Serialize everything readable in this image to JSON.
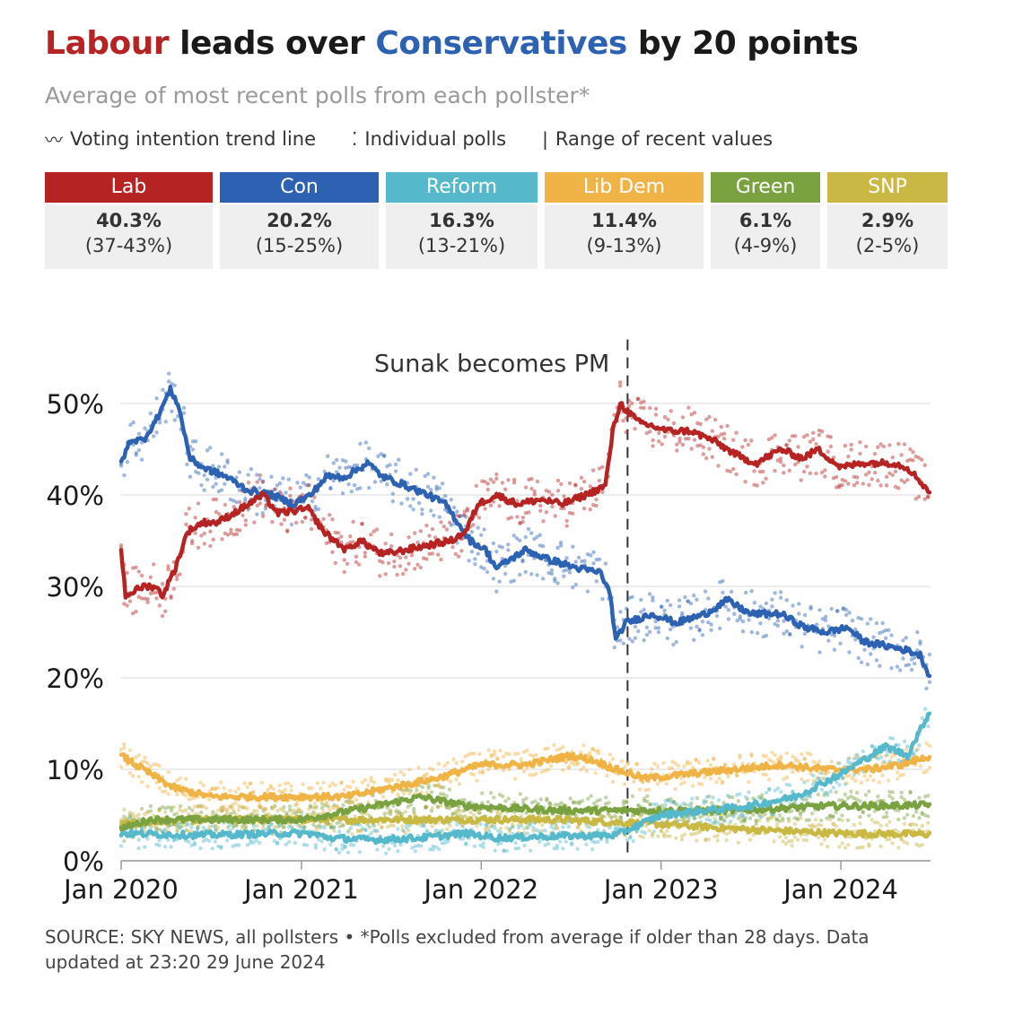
{
  "title": {
    "part1": "Labour",
    "part2": " leads over ",
    "part3": "Conservatives",
    "part4": " by 20 points"
  },
  "subtitle": "Average of most recent polls from each pollster*",
  "legend": {
    "trend_glyph": "〰",
    "trend": "Voting intention trend line",
    "polls_glyph": "⁚",
    "polls": "Individual polls",
    "range_glyph": "|",
    "range": "Range of recent values"
  },
  "parties": [
    {
      "name": "Lab",
      "value": "40.3%",
      "range": "(37-43%)",
      "color": "#b62323"
    },
    {
      "name": "Con",
      "value": "20.2%",
      "range": "(15-25%)",
      "color": "#2d62b3"
    },
    {
      "name": "Reform",
      "value": "16.3%",
      "range": "(13-21%)",
      "color": "#55b9cb"
    },
    {
      "name": "Lib Dem",
      "value": "11.4%",
      "range": "(9-13%)",
      "color": "#efb445"
    },
    {
      "name": "Green",
      "value": "6.1%",
      "range": "(4-9%)",
      "color": "#7aa240"
    },
    {
      "name": "SNP",
      "value": "2.9%",
      "range": "(2-5%)",
      "color": "#c9b844"
    }
  ],
  "source": "SOURCE: SKY NEWS, all pollsters • *Polls excluded from average if older than 28 days. Data updated at 23:20 29 June 2024",
  "chart_data": {
    "type": "line",
    "xlabel": "",
    "ylabel": "",
    "ylim": [
      0,
      55
    ],
    "xlim": [
      "2020-01-01",
      "2024-07-01"
    ],
    "y_ticks": [
      "0%",
      "10%",
      "20%",
      "30%",
      "40%",
      "50%"
    ],
    "y_tick_values": [
      0,
      10,
      20,
      30,
      40,
      50
    ],
    "x_ticks": [
      "Jan 2020",
      "Jan 2021",
      "Jan 2022",
      "Jan 2023",
      "Jan 2024"
    ],
    "x_tick_values": [
      "2020-01-01",
      "2021-01-01",
      "2022-01-01",
      "2023-01-01",
      "2024-01-01"
    ],
    "grid": true,
    "annotation": {
      "label": "Sunak becomes PM",
      "x": "2022-10-25"
    },
    "series": [
      {
        "name": "Lab",
        "color": "#b62323",
        "points": [
          [
            "2020-01-01",
            34
          ],
          [
            "2020-01-10",
            29
          ],
          [
            "2020-02-15",
            30
          ],
          [
            "2020-03-10",
            30
          ],
          [
            "2020-03-25",
            29
          ],
          [
            "2020-04-20",
            32
          ],
          [
            "2020-05-15",
            36
          ],
          [
            "2020-06-15",
            37
          ],
          [
            "2020-07-15",
            37
          ],
          [
            "2020-09-01",
            38.5
          ],
          [
            "2020-10-15",
            40
          ],
          [
            "2020-11-15",
            38
          ],
          [
            "2021-01-15",
            38.5
          ],
          [
            "2021-02-15",
            36
          ],
          [
            "2021-04-01",
            34
          ],
          [
            "2021-05-01",
            35
          ],
          [
            "2021-06-15",
            33.5
          ],
          [
            "2021-08-01",
            34
          ],
          [
            "2021-09-15",
            34.5
          ],
          [
            "2021-11-01",
            35
          ],
          [
            "2021-12-01",
            36
          ],
          [
            "2021-12-25",
            39
          ],
          [
            "2022-02-01",
            40
          ],
          [
            "2022-03-15",
            39
          ],
          [
            "2022-05-01",
            39.5
          ],
          [
            "2022-06-15",
            39
          ],
          [
            "2022-08-01",
            40
          ],
          [
            "2022-09-10",
            41
          ],
          [
            "2022-09-25",
            47
          ],
          [
            "2022-10-10",
            50
          ],
          [
            "2022-11-15",
            48
          ],
          [
            "2023-01-15",
            47
          ],
          [
            "2023-03-01",
            47
          ],
          [
            "2023-04-15",
            46
          ],
          [
            "2023-06-15",
            44
          ],
          [
            "2023-07-15",
            43.5
          ],
          [
            "2023-09-01",
            45
          ],
          [
            "2023-10-15",
            44
          ],
          [
            "2023-11-15",
            45
          ],
          [
            "2024-01-01",
            43
          ],
          [
            "2024-02-15",
            43.5
          ],
          [
            "2024-04-15",
            43.5
          ],
          [
            "2024-05-15",
            43
          ],
          [
            "2024-06-10",
            41.5
          ],
          [
            "2024-06-29",
            40.3
          ]
        ]
      },
      {
        "name": "Con",
        "color": "#2d62b3",
        "points": [
          [
            "2020-01-01",
            43.5
          ],
          [
            "2020-01-20",
            46
          ],
          [
            "2020-02-15",
            46
          ],
          [
            "2020-03-10",
            48
          ],
          [
            "2020-04-10",
            51.5
          ],
          [
            "2020-04-25",
            50
          ],
          [
            "2020-05-20",
            44
          ],
          [
            "2020-06-15",
            43
          ],
          [
            "2020-08-01",
            42
          ],
          [
            "2020-09-15",
            40.5
          ],
          [
            "2020-11-01",
            40
          ],
          [
            "2020-12-15",
            39
          ],
          [
            "2021-01-20",
            40
          ],
          [
            "2021-02-20",
            42
          ],
          [
            "2021-04-01",
            42
          ],
          [
            "2021-05-15",
            43.5
          ],
          [
            "2021-06-15",
            42
          ],
          [
            "2021-08-01",
            41
          ],
          [
            "2021-09-15",
            40
          ],
          [
            "2021-10-20",
            39
          ],
          [
            "2021-12-10",
            35
          ],
          [
            "2022-01-10",
            34
          ],
          [
            "2022-02-01",
            32
          ],
          [
            "2022-04-01",
            34
          ],
          [
            "2022-05-15",
            33
          ],
          [
            "2022-07-15",
            32
          ],
          [
            "2022-09-01",
            31.5
          ],
          [
            "2022-09-20",
            29
          ],
          [
            "2022-10-01",
            24
          ],
          [
            "2022-10-20",
            26
          ],
          [
            "2022-12-15",
            27
          ],
          [
            "2023-02-01",
            26
          ],
          [
            "2023-04-01",
            27
          ],
          [
            "2023-05-15",
            28.5
          ],
          [
            "2023-07-01",
            27
          ],
          [
            "2023-09-01",
            27
          ],
          [
            "2023-10-20",
            25.5
          ],
          [
            "2023-12-01",
            25
          ],
          [
            "2024-01-15",
            25.5
          ],
          [
            "2024-02-15",
            24
          ],
          [
            "2024-04-01",
            23.5
          ],
          [
            "2024-05-15",
            23
          ],
          [
            "2024-06-10",
            22.5
          ],
          [
            "2024-06-29",
            20.2
          ]
        ]
      },
      {
        "name": "Reform",
        "color": "#55b9cb",
        "points": [
          [
            "2020-01-01",
            3
          ],
          [
            "2020-06-01",
            2.8
          ],
          [
            "2020-12-01",
            3
          ],
          [
            "2021-01-15",
            3
          ],
          [
            "2021-03-01",
            2.5
          ],
          [
            "2021-06-01",
            2.3
          ],
          [
            "2021-09-01",
            2.5
          ],
          [
            "2021-12-01",
            3
          ],
          [
            "2022-02-01",
            2.5
          ],
          [
            "2022-06-01",
            2.7
          ],
          [
            "2022-10-01",
            2.8
          ],
          [
            "2023-01-01",
            5
          ],
          [
            "2023-04-01",
            5.5
          ],
          [
            "2023-07-01",
            6
          ],
          [
            "2023-10-01",
            7
          ],
          [
            "2024-01-01",
            9.5
          ],
          [
            "2024-02-15",
            11
          ],
          [
            "2024-04-01",
            12.5
          ],
          [
            "2024-05-15",
            11.5
          ],
          [
            "2024-06-29",
            16.3
          ]
        ]
      },
      {
        "name": "Lib Dem",
        "color": "#efb445",
        "points": [
          [
            "2020-01-01",
            11.5
          ],
          [
            "2020-02-15",
            10
          ],
          [
            "2020-04-15",
            8
          ],
          [
            "2020-07-01",
            7
          ],
          [
            "2020-10-01",
            7
          ],
          [
            "2021-01-01",
            7
          ],
          [
            "2021-04-01",
            7
          ],
          [
            "2021-07-01",
            8
          ],
          [
            "2021-10-01",
            9
          ],
          [
            "2022-01-01",
            10.5
          ],
          [
            "2022-04-01",
            10.5
          ],
          [
            "2022-07-01",
            11.5
          ],
          [
            "2022-08-15",
            11
          ],
          [
            "2022-10-01",
            10
          ],
          [
            "2022-12-01",
            9
          ],
          [
            "2023-03-01",
            9.5
          ],
          [
            "2023-06-01",
            10
          ],
          [
            "2023-09-01",
            10.5
          ],
          [
            "2023-12-01",
            10
          ],
          [
            "2024-03-01",
            10
          ],
          [
            "2024-05-01",
            10.5
          ],
          [
            "2024-06-29",
            11.4
          ]
        ]
      },
      {
        "name": "Green",
        "color": "#7aa240",
        "points": [
          [
            "2020-01-01",
            3.5
          ],
          [
            "2020-03-01",
            4.5
          ],
          [
            "2020-09-01",
            4.5
          ],
          [
            "2021-01-01",
            4.5
          ],
          [
            "2021-06-01",
            6
          ],
          [
            "2021-09-01",
            7
          ],
          [
            "2021-12-01",
            6
          ],
          [
            "2022-06-01",
            5.5
          ],
          [
            "2022-12-01",
            5.5
          ],
          [
            "2023-06-01",
            5.5
          ],
          [
            "2023-12-01",
            6
          ],
          [
            "2024-03-01",
            6
          ],
          [
            "2024-06-29",
            6.1
          ]
        ]
      },
      {
        "name": "SNP",
        "color": "#c9b844",
        "points": [
          [
            "2020-01-01",
            4
          ],
          [
            "2020-06-01",
            4.5
          ],
          [
            "2021-01-01",
            4.5
          ],
          [
            "2021-06-01",
            4.5
          ],
          [
            "2022-01-01",
            4.5
          ],
          [
            "2022-06-01",
            4.5
          ],
          [
            "2023-01-01",
            4
          ],
          [
            "2023-06-01",
            3.5
          ],
          [
            "2024-01-01",
            3
          ],
          [
            "2024-06-29",
            2.9
          ]
        ]
      }
    ]
  }
}
